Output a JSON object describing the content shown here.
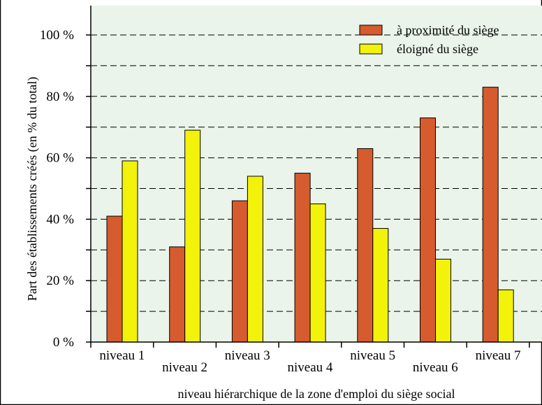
{
  "chart_data": {
    "type": "bar",
    "categories": [
      "niveau 1",
      "niveau 2",
      "niveau 3",
      "niveau 4",
      "niveau 5",
      "niveau 6",
      "niveau 7"
    ],
    "series": [
      {
        "name": "à proximité du siège",
        "color": "#d65b2e",
        "values": [
          41,
          31,
          46,
          55,
          63,
          73,
          83
        ]
      },
      {
        "name": "éloigné du siège",
        "color": "#f2f20a",
        "values": [
          59,
          69,
          54,
          45,
          37,
          27,
          17
        ]
      }
    ],
    "title": "",
    "xlabel": "niveau hiérarchique de la zone d'emploi du siège social",
    "ylabel": "Part des établissements créés (en % du total)",
    "ylim": [
      0,
      100
    ],
    "yticks": [
      0,
      20,
      40,
      60,
      80,
      100
    ],
    "ytick_labels": [
      "0 %",
      "20 %",
      "40 %",
      "60 %",
      "80 %",
      "100 %"
    ],
    "minor_gridlines": [
      10,
      30,
      50,
      70,
      90
    ],
    "grid": true,
    "grid_style": "dashed",
    "legend_position": "top-right",
    "plot_background": "#eaf4ea"
  }
}
